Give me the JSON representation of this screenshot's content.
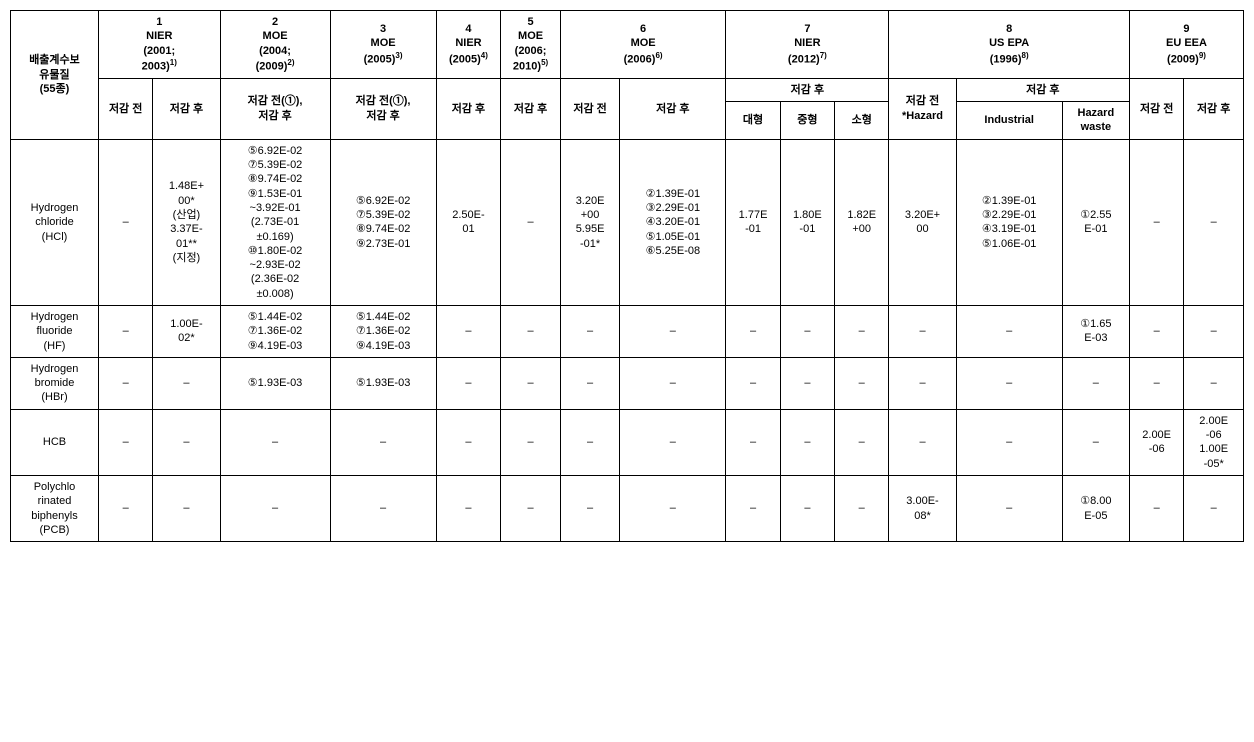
{
  "cornerHeader": "배출계수보\n유물질\n(55종)",
  "headers": {
    "c1": {
      "num": "1",
      "name": "NIER",
      "yrs": "(2001;\n2003)",
      "sup": "1)",
      "sub1": "저감 전",
      "sub2": "저감 후"
    },
    "c2": {
      "num": "2",
      "name": "MOE",
      "yrs": "(2004;\n(2009)",
      "sup": "2)",
      "sub": "저감 전(①),\n저감 후"
    },
    "c3": {
      "num": "3",
      "name": "MOE",
      "yrs": "(2005)",
      "sup": "3)",
      "sub": "저감 전(①),\n저감 후"
    },
    "c4": {
      "num": "4",
      "name": "NIER",
      "yrs": "(2005)",
      "sup": "4)",
      "sub": "저감 후"
    },
    "c5": {
      "num": "5",
      "name": "MOE",
      "yrs": "(2006;\n2010)",
      "sup": "5)",
      "sub": "저감 후"
    },
    "c6": {
      "num": "6",
      "name": "MOE",
      "yrs": "(2006)",
      "sup": "6)",
      "sub1": "저감 전",
      "sub2": "저감 후"
    },
    "c7": {
      "num": "7",
      "name": "NIER",
      "yrs": "(2012)",
      "sup": "7)",
      "group": "저감 후",
      "a": "대형",
      "b": "중형",
      "c": "소형"
    },
    "c8": {
      "num": "8",
      "name": "US EPA",
      "yrs": "(1996)",
      "sup": "8)",
      "pre": "저감 전\n*Hazard",
      "group": "저감 후",
      "a": "Industrial",
      "b": "Hazard\nwaste"
    },
    "c9": {
      "num": "9",
      "name": "EU EEA",
      "yrs": "(2009)",
      "sup": "9)",
      "sub1": "저감 전",
      "sub2": "저감 후"
    }
  },
  "rows": [
    {
      "label": "Hydrogen\nchloride\n(HCl)",
      "cells": [
        "–",
        "1.48E+\n00*\n(산업)\n3.37E-\n01**\n(지정)",
        "⑤6.92E-02\n⑦5.39E-02\n⑧9.74E-02\n⑨1.53E-01\n~3.92E-01\n(2.73E-01\n±0.169)\n⑩1.80E-02\n~2.93E-02\n(2.36E-02\n±0.008)",
        "⑤6.92E-02\n⑦5.39E-02\n⑧9.74E-02\n⑨2.73E-01",
        "2.50E-\n01",
        "–",
        "3.20E\n+00\n5.95E\n-01*",
        "②1.39E-01\n③2.29E-01\n④3.20E-01\n⑤1.05E-01\n⑥5.25E-08",
        "1.77E\n-01",
        "1.80E\n-01",
        "1.82E\n+00",
        "3.20E+\n00",
        "②1.39E-01\n③2.29E-01\n④3.19E-01\n⑤1.06E-01",
        "①2.55\nE-01",
        "–",
        "–"
      ]
    },
    {
      "label": "Hydrogen\nfluoride\n(HF)",
      "cells": [
        "–",
        "1.00E-\n02*",
        "⑤1.44E-02\n⑦1.36E-02\n⑨4.19E-03",
        "⑤1.44E-02\n⑦1.36E-02\n⑨4.19E-03",
        "–",
        "–",
        "–",
        "–",
        "–",
        "–",
        "–",
        "–",
        "–",
        "①1.65\nE-03",
        "–",
        "–"
      ]
    },
    {
      "label": "Hydrogen\nbromide\n(HBr)",
      "cells": [
        "–",
        "–",
        "⑤1.93E-03",
        "⑤1.93E-03",
        "–",
        "–",
        "–",
        "–",
        "–",
        "–",
        "–",
        "–",
        "–",
        "–",
        "–",
        "–"
      ]
    },
    {
      "label": "HCB",
      "cells": [
        "–",
        "–",
        "–",
        "–",
        "–",
        "–",
        "–",
        "–",
        "–",
        "–",
        "–",
        "–",
        "–",
        "–",
        "2.00E\n-06",
        "2.00E\n-06\n1.00E\n-05*"
      ]
    },
    {
      "label": "Polychlo\nrinated\nbiphenyls\n(PCB)",
      "cells": [
        "–",
        "–",
        "–",
        "–",
        "–",
        "–",
        "–",
        "–",
        "–",
        "–",
        "–",
        "3.00E-\n08*",
        "–",
        "①8.00\nE-05",
        "–",
        "–"
      ]
    }
  ]
}
